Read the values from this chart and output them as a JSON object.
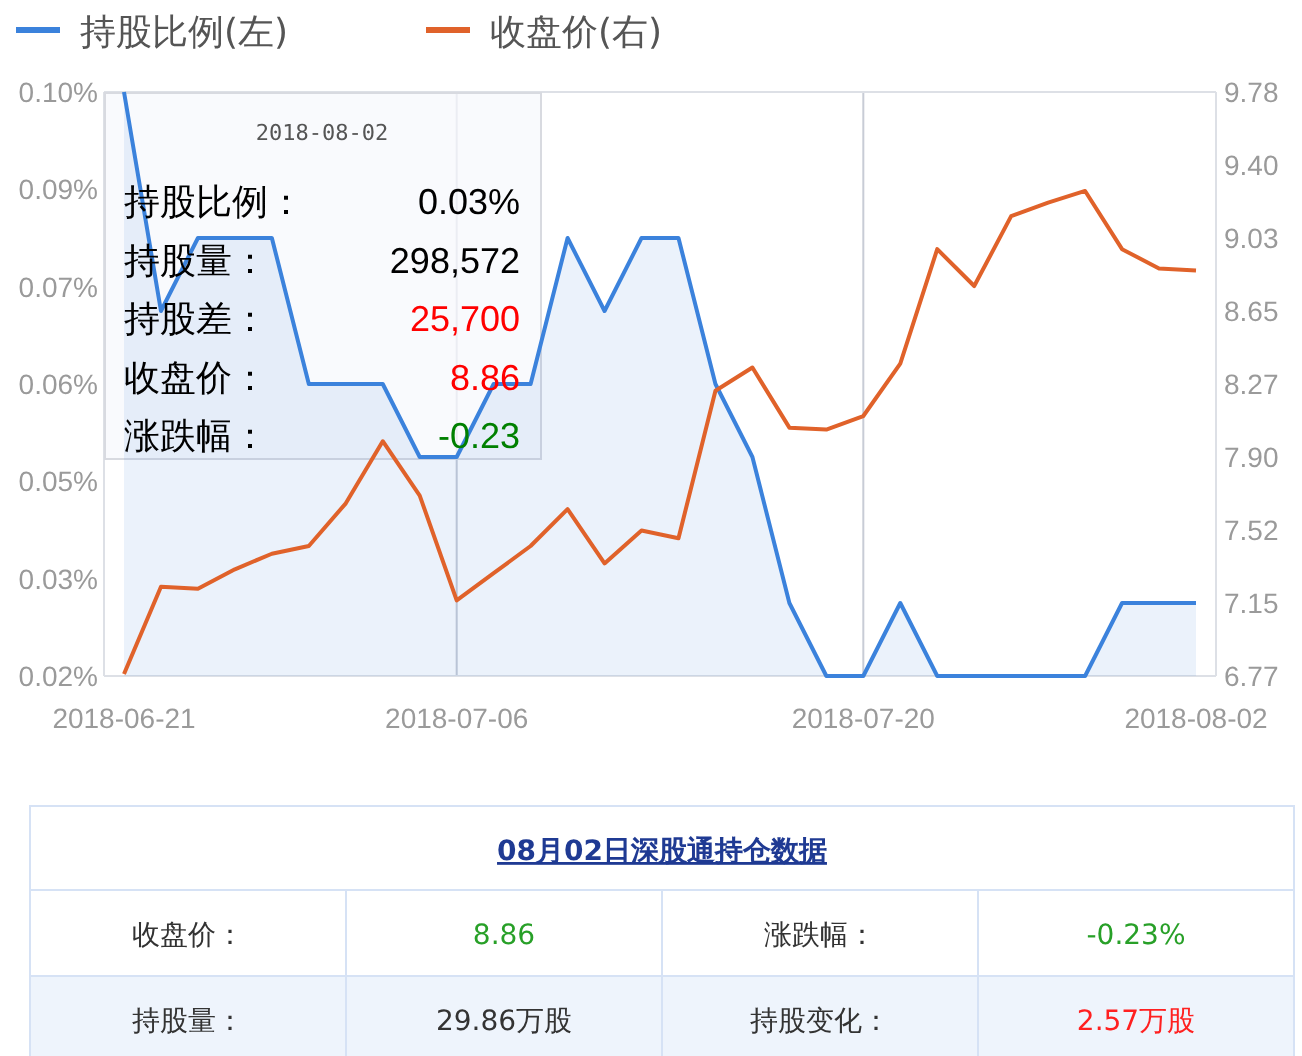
{
  "chart_data": {
    "type": "line",
    "categories": [
      "2018-06-21",
      null,
      null,
      null,
      null,
      null,
      null,
      null,
      null,
      "2018-07-06",
      null,
      null,
      null,
      null,
      null,
      null,
      null,
      null,
      null,
      null,
      "2018-07-20",
      null,
      null,
      null,
      null,
      null,
      null,
      null,
      null,
      "2018-08-02"
    ],
    "series": [
      {
        "name": "持股比例(左)",
        "type": "area",
        "color": "#3b82dc",
        "values": [
          0.1,
          0.07,
          0.08,
          0.08,
          0.08,
          0.06,
          0.06,
          0.06,
          0.05,
          0.05,
          0.06,
          0.06,
          0.08,
          0.07,
          0.08,
          0.08,
          0.06,
          0.05,
          0.03,
          0.02,
          0.02,
          0.03,
          0.02,
          0.02,
          0.02,
          0.02,
          0.02,
          0.03,
          0.03,
          0.03
        ]
      },
      {
        "name": "收盘价(右)",
        "type": "line",
        "axis": "y2",
        "color": "#e0622a",
        "values": [
          6.78,
          7.23,
          7.22,
          7.32,
          7.4,
          7.44,
          7.66,
          7.98,
          7.7,
          7.16,
          7.3,
          7.44,
          7.63,
          7.35,
          7.52,
          7.48,
          8.24,
          8.36,
          8.05,
          8.04,
          8.11,
          8.38,
          8.97,
          8.78,
          9.14,
          9.21,
          9.27,
          8.97,
          8.87,
          8.86
        ]
      }
    ],
    "ylim": [
      0.02,
      0.1
    ],
    "yticks": [
      {
        "value": 0.02,
        "label": "0.02%"
      },
      {
        "value": 0.0333,
        "label": "0.03%"
      },
      {
        "value": 0.0467,
        "label": "0.05%"
      },
      {
        "value": 0.06,
        "label": "0.06%"
      },
      {
        "value": 0.0733,
        "label": "0.07%"
      },
      {
        "value": 0.0867,
        "label": "0.09%"
      },
      {
        "value": 0.1,
        "label": "0.10%"
      }
    ],
    "y2lim": [
      6.77,
      9.78
    ],
    "y2ticks": [
      {
        "value": 6.77,
        "label": "6.77"
      },
      {
        "value": 7.146,
        "label": "7.15"
      },
      {
        "value": 7.523,
        "label": "7.52"
      },
      {
        "value": 7.899,
        "label": "7.90"
      },
      {
        "value": 8.275,
        "label": "8.27"
      },
      {
        "value": 8.651,
        "label": "8.65"
      },
      {
        "value": 9.028,
        "label": "9.03"
      },
      {
        "value": 9.404,
        "label": "9.40"
      },
      {
        "value": 9.78,
        "label": "9.78"
      }
    ],
    "grid": "x",
    "legend": "top left",
    "marker": "none",
    "line_style": "solid",
    "annotations": [
      "2018-08-02",
      "持股比例：",
      "0.03%",
      "持股量：",
      "298,572",
      "持股差：",
      "25,700",
      "收盘价：",
      "8.86",
      "涨跌幅：",
      "-0.23",
      "08月02日深股通持仓数据",
      "收盘价：",
      "8.86",
      "涨跌幅：",
      "-0.23%",
      "持股量：",
      "29.86万股",
      "持股变化：",
      "2.57万股"
    ]
  }
}
